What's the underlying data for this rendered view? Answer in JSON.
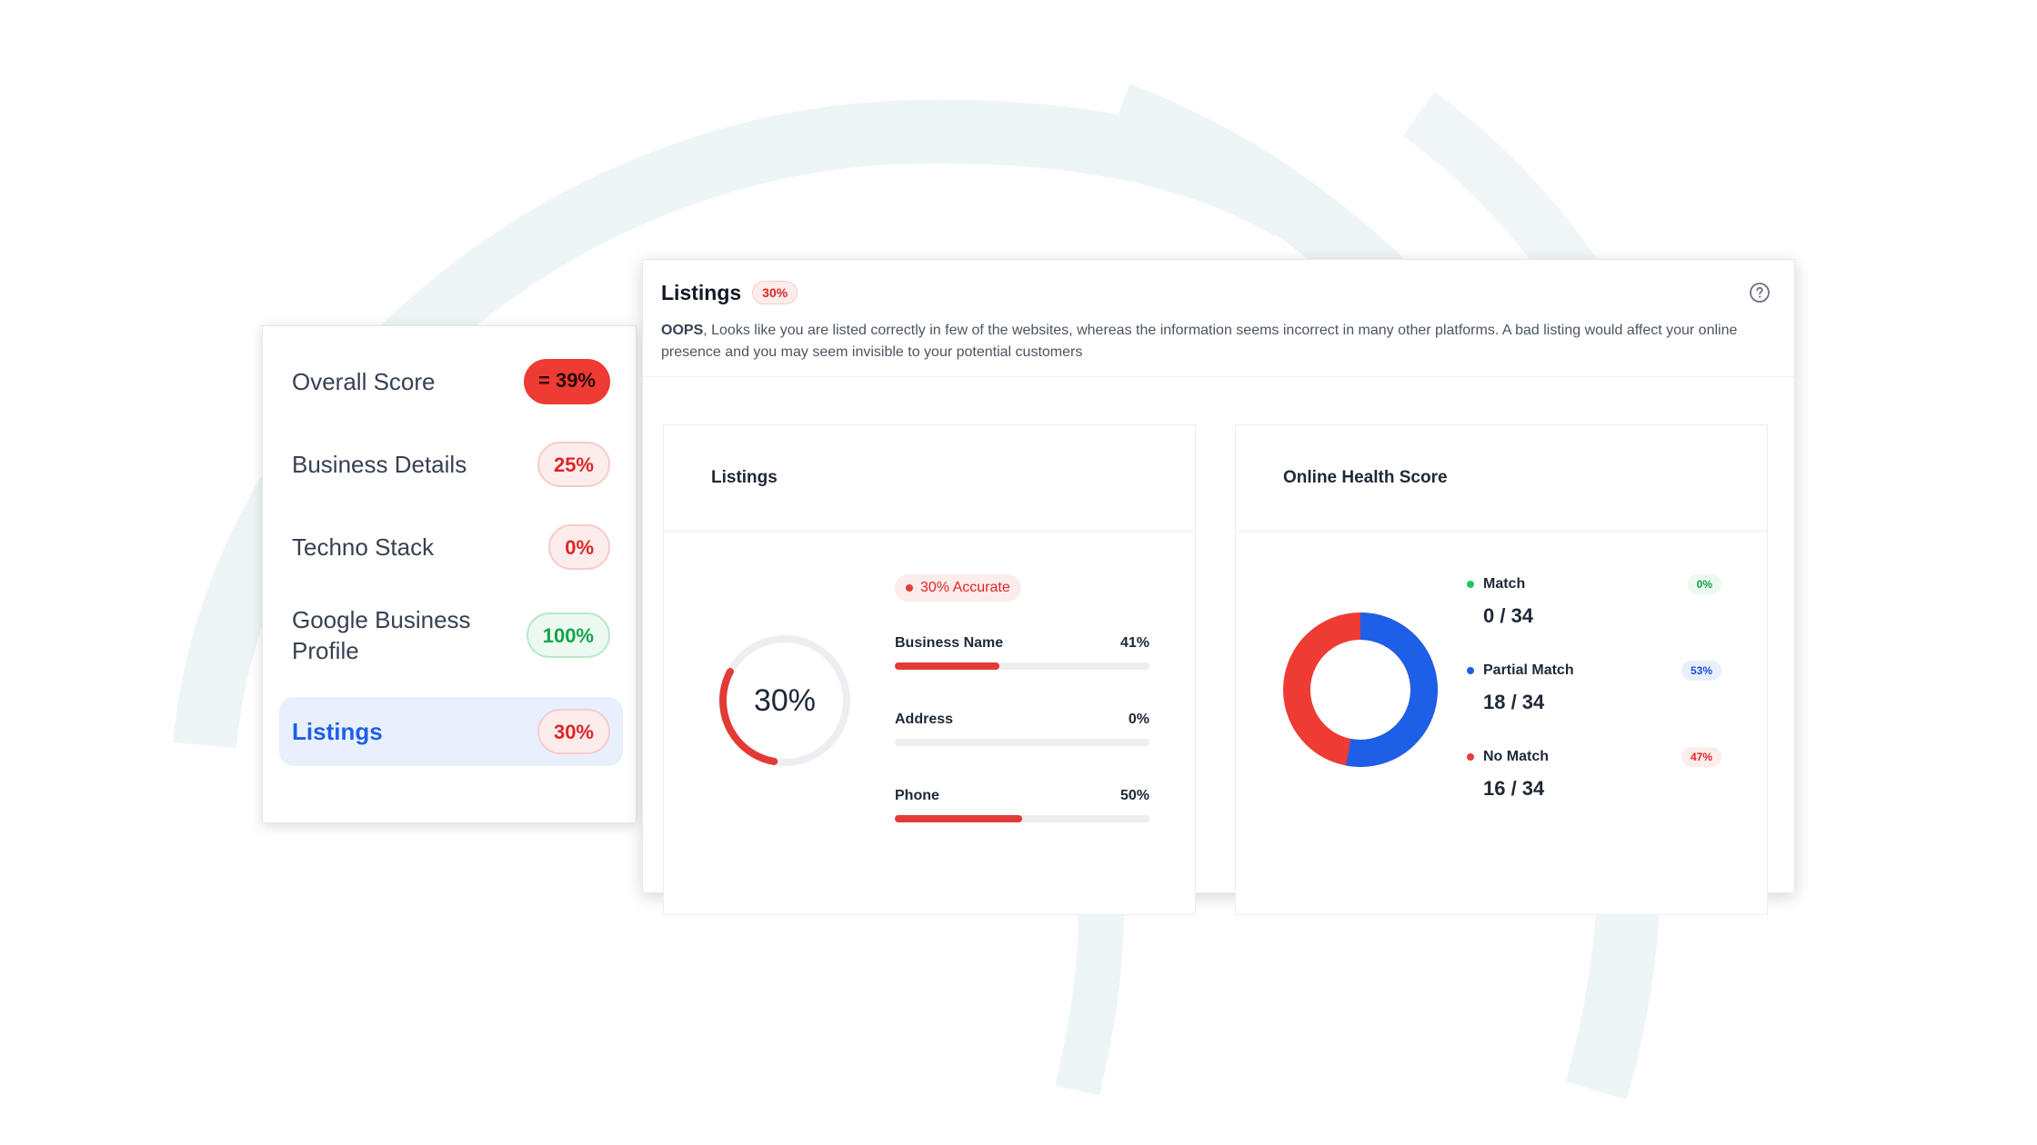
{
  "colors": {
    "red": "#ee3b34",
    "blue": "#1d5fe6",
    "green": "#22c55e",
    "track": "#eceef1",
    "bg_arc": "#eef5f7"
  },
  "score_card": {
    "items": [
      {
        "label": "Overall Score",
        "value": "= 39%"
      },
      {
        "label": "Business Details",
        "value": "25%"
      },
      {
        "label": "Techno Stack",
        "value": "0%"
      },
      {
        "label": "Google Business Profile",
        "value": "100%"
      },
      {
        "label": "Listings",
        "value": "30%"
      }
    ]
  },
  "panel": {
    "title": "Listings",
    "title_badge": "30%",
    "help_icon": "question-circle-icon",
    "desc_lead": "OOPS",
    "desc_body": ", Looks like you are listed correctly in few of the websites, whereas the information seems incorrect in many other platforms. A bad listing would affect your online presence and you may seem invisible to your potential customers"
  },
  "listings_card": {
    "title": "Listings",
    "gauge_value": 30,
    "gauge_label": "30%",
    "accuracy_badge": "30% Accurate",
    "bars": [
      {
        "label": "Business Name",
        "value_label": "41%",
        "value": 41
      },
      {
        "label": "Address",
        "value_label": "0%",
        "value": 0
      },
      {
        "label": "Phone",
        "value_label": "50%",
        "value": 50
      }
    ]
  },
  "health_card": {
    "title": "Online Health Score",
    "legend": [
      {
        "label": "Match",
        "count": "0 / 34",
        "pct": "0%"
      },
      {
        "label": "Partial Match",
        "count": "18 / 34",
        "pct": "53%"
      },
      {
        "label": "No Match",
        "count": "16 / 34",
        "pct": "47%"
      }
    ],
    "donut": {
      "blue_fraction": 0.53,
      "red_fraction": 0.47
    }
  }
}
